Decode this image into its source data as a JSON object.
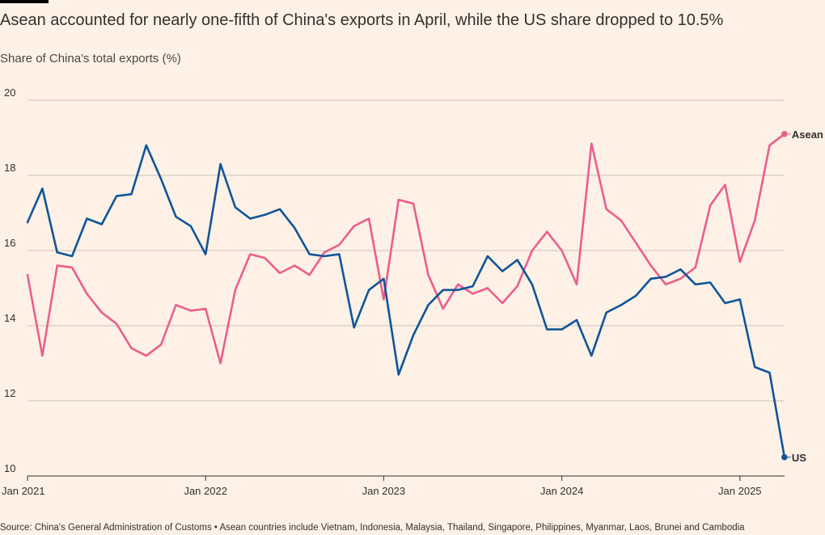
{
  "header": {
    "title": "Asean accounted for nearly one-fifth of China's exports in April, while the US share dropped to 10.5%",
    "subtitle": "Share of China's total exports (%)"
  },
  "footer": {
    "source": "Source: China's General Administration of Customs • Asean countries include Vietnam, Indonesia, Malaysia, Thailand, Singapore, Philippines, Myanmar, Laos, Brunei and Cambodia"
  },
  "colors": {
    "us": "#0F5499",
    "asean": "#EB5E8D",
    "grid": "#CCC1B7",
    "axis": "#33302E"
  },
  "chart_data": {
    "type": "line",
    "title": "Asean accounted for nearly one-fifth of China's exports in April, while the US share dropped to 10.5%",
    "ylabel": "Share of China's total exports (%)",
    "ylim": [
      10,
      20
    ],
    "yticks": [
      10,
      12,
      14,
      16,
      18,
      20
    ],
    "xticks": [
      {
        "label": "Jan 2021",
        "index": 0
      },
      {
        "label": "Jan 2022",
        "index": 12
      },
      {
        "label": "Jan 2023",
        "index": 24
      },
      {
        "label": "Jan 2024",
        "index": 36
      },
      {
        "label": "Jan 2025",
        "index": 48
      }
    ],
    "x_start": "Jan 2021",
    "x_end": "Apr 2025",
    "x_step": "month",
    "grid": true,
    "series": [
      {
        "name": "US",
        "values": [
          16.75,
          17.65,
          15.95,
          15.85,
          16.85,
          16.7,
          17.45,
          17.5,
          18.8,
          17.9,
          16.9,
          16.65,
          15.9,
          18.3,
          17.15,
          16.85,
          16.95,
          17.1,
          16.6,
          15.9,
          15.85,
          15.9,
          13.95,
          14.95,
          15.25,
          12.7,
          13.75,
          14.55,
          14.95,
          14.95,
          15.05,
          15.85,
          15.45,
          15.75,
          15.1,
          13.9,
          13.9,
          14.15,
          13.2,
          14.35,
          14.55,
          14.8,
          15.25,
          15.3,
          15.5,
          15.1,
          15.15,
          14.6,
          14.7,
          12.9,
          12.75,
          10.5
        ]
      },
      {
        "name": "Asean",
        "values": [
          15.35,
          13.2,
          15.6,
          15.55,
          14.85,
          14.35,
          14.05,
          13.4,
          13.2,
          13.5,
          14.55,
          14.4,
          14.45,
          13.0,
          14.95,
          15.9,
          15.8,
          15.4,
          15.6,
          15.35,
          15.95,
          16.15,
          16.65,
          16.85,
          14.7,
          17.35,
          17.25,
          15.35,
          14.45,
          15.1,
          14.85,
          15.0,
          14.6,
          15.05,
          16.0,
          16.5,
          16.0,
          15.1,
          18.85,
          17.1,
          16.8,
          16.2,
          15.6,
          15.1,
          15.25,
          15.55,
          17.2,
          17.75,
          15.7,
          16.8,
          18.8,
          19.1
        ]
      }
    ]
  }
}
